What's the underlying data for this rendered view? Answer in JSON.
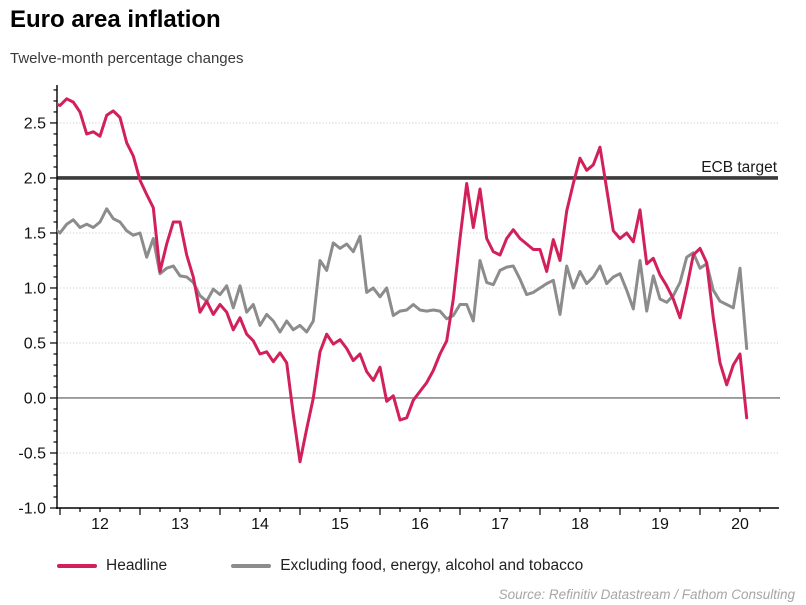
{
  "chart_data": {
    "type": "line",
    "title": "Euro area inflation",
    "subtitle": "Twelve-month percentage changes",
    "start_month": "2011-12",
    "frequency": "monthly",
    "ylim": [
      -1.0,
      2.845
    ],
    "xlim_years": [
      2011.9625,
      2021.0
    ],
    "y_tick_labels": [
      "2.5",
      "2.0",
      "1.5",
      "1.0",
      "0.5",
      "0.0",
      "-0.5",
      "-1.0"
    ],
    "y_tick_values": [
      2.5,
      2.0,
      1.5,
      1.0,
      0.5,
      0.0,
      -0.5,
      -1.0
    ],
    "x_tick_labels": [
      "12",
      "13",
      "14",
      "15",
      "16",
      "17",
      "18",
      "19",
      "20"
    ],
    "x_tick_years": [
      2012,
      2013,
      2014,
      2015,
      2016,
      2017,
      2018,
      2019,
      2020
    ],
    "grid_dotted_values": [
      2.5,
      1.5,
      1.0,
      0.5,
      -0.5
    ],
    "zero_line_value": 0.0,
    "ecb_target": {
      "label": "ECB target",
      "value": 2.0
    },
    "legend_position": "bottom",
    "series": [
      {
        "name": "Headline",
        "color": "#d2215a",
        "values": [
          2.68,
          2.66,
          2.72,
          2.69,
          2.6,
          2.4,
          2.42,
          2.38,
          2.57,
          2.61,
          2.55,
          2.32,
          2.2,
          1.98,
          1.85,
          1.73,
          1.15,
          1.4,
          1.6,
          1.6,
          1.3,
          1.1,
          0.78,
          0.88,
          0.76,
          0.85,
          0.78,
          0.62,
          0.73,
          0.58,
          0.52,
          0.4,
          0.42,
          0.33,
          0.41,
          0.32,
          -0.15,
          -0.58,
          -0.28,
          0.0,
          0.42,
          0.58,
          0.49,
          0.53,
          0.45,
          0.34,
          0.4,
          0.24,
          0.16,
          0.28,
          -0.03,
          0.02,
          -0.2,
          -0.18,
          -0.02,
          0.06,
          0.14,
          0.25,
          0.4,
          0.52,
          0.9,
          1.45,
          1.95,
          1.55,
          1.9,
          1.45,
          1.33,
          1.3,
          1.45,
          1.53,
          1.45,
          1.4,
          1.35,
          1.35,
          1.15,
          1.44,
          1.25,
          1.7,
          1.95,
          2.18,
          2.07,
          2.12,
          2.28,
          1.9,
          1.52,
          1.45,
          1.5,
          1.42,
          1.71,
          1.22,
          1.27,
          1.12,
          1.02,
          0.9,
          0.73,
          1.0,
          1.3,
          1.36,
          1.23,
          0.73,
          0.32,
          0.12,
          0.3,
          0.4,
          -0.18
        ]
      },
      {
        "name": "Excluding food, energy, alcohol and tobacco",
        "color": "#8c8c8c",
        "values": [
          1.55,
          1.5,
          1.58,
          1.62,
          1.55,
          1.58,
          1.55,
          1.6,
          1.72,
          1.63,
          1.6,
          1.52,
          1.48,
          1.5,
          1.28,
          1.45,
          1.13,
          1.18,
          1.2,
          1.11,
          1.1,
          1.05,
          0.93,
          0.88,
          0.99,
          0.94,
          1.02,
          0.82,
          1.02,
          0.78,
          0.85,
          0.66,
          0.76,
          0.7,
          0.6,
          0.7,
          0.62,
          0.66,
          0.6,
          0.7,
          1.25,
          1.16,
          1.41,
          1.36,
          1.4,
          1.33,
          1.47,
          0.96,
          1.0,
          0.92,
          1.0,
          0.75,
          0.79,
          0.8,
          0.85,
          0.8,
          0.79,
          0.8,
          0.79,
          0.72,
          0.75,
          0.85,
          0.85,
          0.7,
          1.25,
          1.05,
          1.03,
          1.16,
          1.19,
          1.2,
          1.08,
          0.94,
          0.96,
          1.0,
          1.04,
          1.07,
          0.76,
          1.2,
          1.0,
          1.15,
          1.04,
          1.1,
          1.2,
          1.04,
          1.1,
          1.13,
          0.98,
          0.81,
          1.25,
          0.79,
          1.11,
          0.9,
          0.87,
          0.93,
          1.05,
          1.28,
          1.32,
          1.18,
          1.22,
          0.98,
          0.88,
          0.85,
          0.82,
          1.18,
          0.45
        ]
      }
    ]
  },
  "source": "Source: Refinitiv Datastream / Fathom Consulting",
  "colors": {
    "headline": "#d2215a",
    "core": "#8c8c8c",
    "ecb_line": "#3c3c3c",
    "zero_line": "#8a8a8a",
    "grid_dotted": "#c4c4c4",
    "axis": "#000000"
  }
}
